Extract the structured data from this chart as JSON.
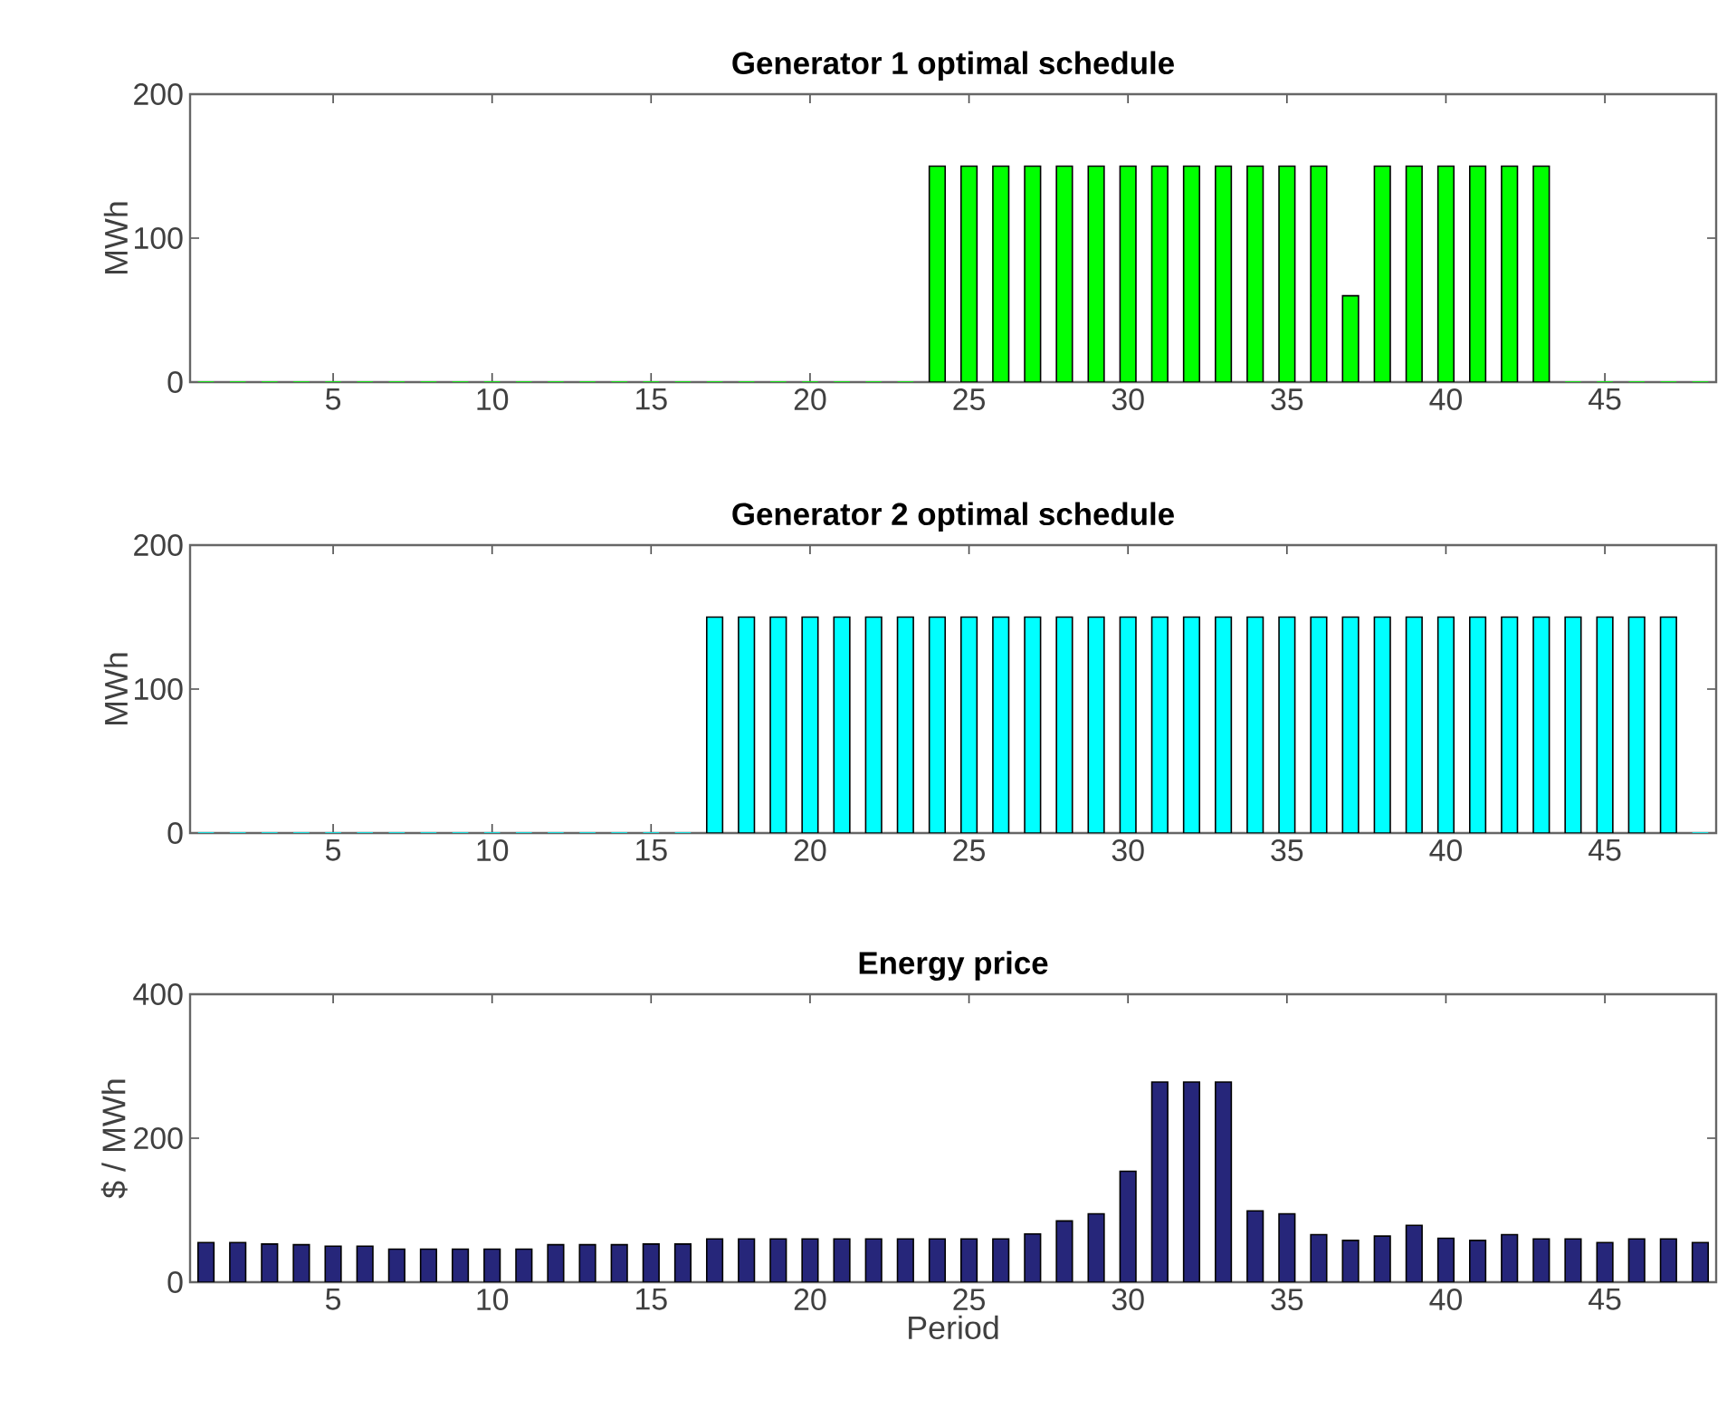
{
  "chart_data": [
    {
      "type": "bar",
      "title": "Generator 1 optimal schedule",
      "ylabel": "MWh",
      "color": "#00ff00",
      "x": [
        1,
        2,
        3,
        4,
        5,
        6,
        7,
        8,
        9,
        10,
        11,
        12,
        13,
        14,
        15,
        16,
        17,
        18,
        19,
        20,
        21,
        22,
        23,
        24,
        25,
        26,
        27,
        28,
        29,
        30,
        31,
        32,
        33,
        34,
        35,
        36,
        37,
        38,
        39,
        40,
        41,
        42,
        43,
        44,
        45,
        46,
        47,
        48
      ],
      "values": [
        0,
        0,
        0,
        0,
        0,
        0,
        0,
        0,
        0,
        0,
        0,
        0,
        0,
        0,
        0,
        0,
        0,
        0,
        0,
        0,
        0,
        0,
        0,
        150,
        150,
        150,
        150,
        150,
        150,
        150,
        150,
        150,
        150,
        150,
        150,
        150,
        60,
        150,
        150,
        150,
        150,
        150,
        150,
        0,
        0,
        0,
        0,
        0
      ],
      "xlim": [
        0.5,
        48.5
      ],
      "xticks": [
        5,
        10,
        15,
        20,
        25,
        30,
        35,
        40,
        45
      ],
      "ylim": [
        0,
        200
      ],
      "yticks": [
        0,
        100,
        200
      ]
    },
    {
      "type": "bar",
      "title": "Generator 2 optimal schedule",
      "ylabel": "MWh",
      "color": "#00ffff",
      "x": [
        1,
        2,
        3,
        4,
        5,
        6,
        7,
        8,
        9,
        10,
        11,
        12,
        13,
        14,
        15,
        16,
        17,
        18,
        19,
        20,
        21,
        22,
        23,
        24,
        25,
        26,
        27,
        28,
        29,
        30,
        31,
        32,
        33,
        34,
        35,
        36,
        37,
        38,
        39,
        40,
        41,
        42,
        43,
        44,
        45,
        46,
        47,
        48
      ],
      "values": [
        0,
        0,
        0,
        0,
        0,
        0,
        0,
        0,
        0,
        0,
        0,
        0,
        0,
        0,
        0,
        0,
        150,
        150,
        150,
        150,
        150,
        150,
        150,
        150,
        150,
        150,
        150,
        150,
        150,
        150,
        150,
        150,
        150,
        150,
        150,
        150,
        150,
        150,
        150,
        150,
        150,
        150,
        150,
        150,
        150,
        150,
        150,
        0
      ],
      "xlim": [
        0.5,
        48.5
      ],
      "xticks": [
        5,
        10,
        15,
        20,
        25,
        30,
        35,
        40,
        45
      ],
      "ylim": [
        0,
        200
      ],
      "yticks": [
        0,
        100,
        200
      ]
    },
    {
      "type": "bar",
      "title": "Energy price",
      "ylabel": "$ / MWh",
      "xlabel": "Period",
      "color": "#26267a",
      "x": [
        1,
        2,
        3,
        4,
        5,
        6,
        7,
        8,
        9,
        10,
        11,
        12,
        13,
        14,
        15,
        16,
        17,
        18,
        19,
        20,
        21,
        22,
        23,
        24,
        25,
        26,
        27,
        28,
        29,
        30,
        31,
        32,
        33,
        34,
        35,
        36,
        37,
        38,
        39,
        40,
        41,
        42,
        43,
        44,
        45,
        46,
        47,
        48
      ],
      "values": [
        55,
        55,
        53,
        52,
        50,
        50,
        46,
        46,
        46,
        46,
        46,
        52,
        52,
        52,
        53,
        53,
        60,
        60,
        60,
        60,
        60,
        60,
        60,
        60,
        60,
        60,
        67,
        85,
        95,
        154,
        278,
        278,
        278,
        99,
        95,
        66,
        58,
        64,
        79,
        61,
        58,
        66,
        60,
        60,
        55,
        60,
        60,
        55
      ],
      "xlim": [
        0.5,
        48.5
      ],
      "xticks": [
        5,
        10,
        15,
        20,
        25,
        30,
        35,
        40,
        45
      ],
      "ylim": [
        0,
        400
      ],
      "yticks": [
        0,
        200,
        400
      ]
    }
  ]
}
